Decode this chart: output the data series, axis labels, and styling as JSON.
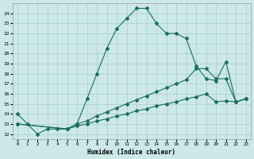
{
  "xlabel": "Humidex (Indice chaleur)",
  "bg_color": "#cce8e8",
  "grid_color": "#aacccc",
  "line_color": "#1a6e60",
  "xlim_min": -0.5,
  "xlim_max": 23.5,
  "ylim_min": 11.5,
  "ylim_max": 25.0,
  "yticks": [
    12,
    13,
    14,
    15,
    16,
    17,
    18,
    19,
    20,
    21,
    22,
    23,
    24
  ],
  "xticks": [
    0,
    1,
    2,
    3,
    4,
    5,
    6,
    7,
    8,
    9,
    10,
    11,
    12,
    13,
    14,
    15,
    16,
    17,
    18,
    19,
    20,
    21,
    22,
    23
  ],
  "curve1_x": [
    0,
    1,
    2,
    3,
    4,
    5,
    6,
    7,
    8,
    9,
    10,
    11,
    12,
    13,
    14,
    15,
    16,
    17,
    18,
    19,
    20,
    21,
    22,
    23
  ],
  "curve1_y": [
    14.0,
    13.0,
    12.0,
    12.5,
    12.5,
    12.5,
    13.0,
    15.5,
    18.0,
    20.5,
    22.5,
    23.5,
    24.5,
    24.5,
    23.0,
    22.0,
    22.0,
    21.5,
    18.8,
    17.5,
    17.3,
    19.2,
    15.2,
    15.5
  ],
  "curve2_x": [
    0,
    5,
    6,
    7,
    8,
    9,
    10,
    11,
    12,
    13,
    14,
    15,
    16,
    17,
    18,
    19,
    20,
    21,
    22,
    23
  ],
  "curve2_y": [
    13.0,
    12.5,
    13.0,
    13.3,
    13.8,
    14.2,
    14.6,
    15.0,
    15.4,
    15.8,
    16.2,
    16.6,
    17.0,
    17.4,
    18.5,
    18.5,
    17.5,
    17.5,
    15.2,
    15.5
  ],
  "curve3_x": [
    0,
    5,
    6,
    7,
    8,
    9,
    10,
    11,
    12,
    13,
    14,
    15,
    16,
    17,
    18,
    19,
    20,
    21,
    22,
    23
  ],
  "curve3_y": [
    13.0,
    12.5,
    12.8,
    13.0,
    13.3,
    13.5,
    13.8,
    14.0,
    14.3,
    14.5,
    14.8,
    15.0,
    15.2,
    15.5,
    15.7,
    16.0,
    15.2,
    15.3,
    15.2,
    15.5
  ]
}
